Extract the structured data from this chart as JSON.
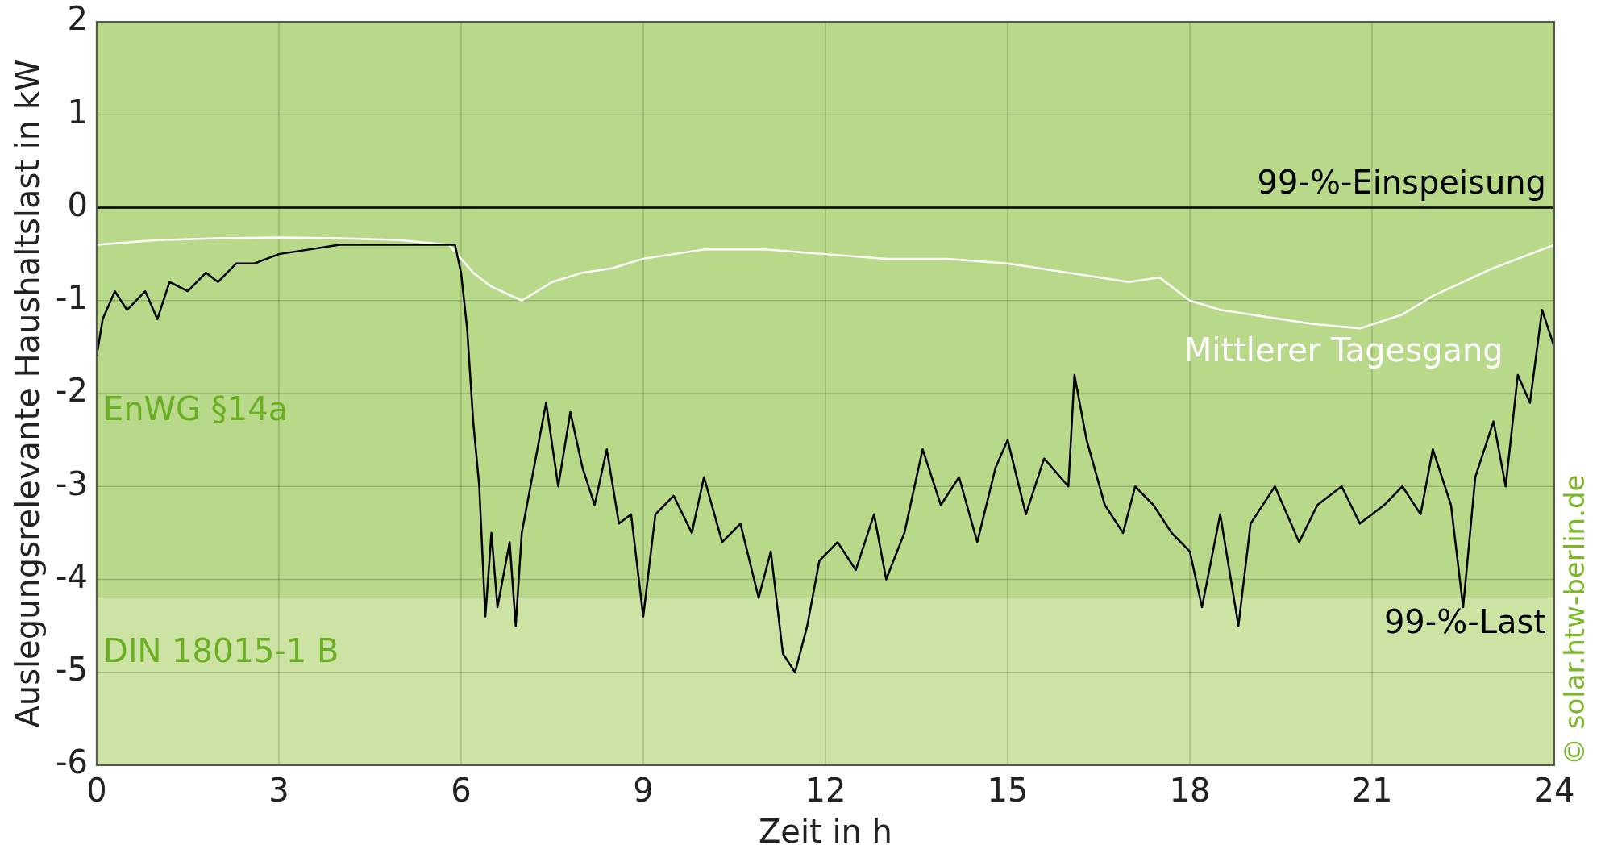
{
  "chart_data": {
    "type": "line",
    "xlabel": "Zeit in h",
    "ylabel": "Auslegungsrelevante Haushaltslast in kW",
    "xlim": [
      0,
      24
    ],
    "xticks": [
      0,
      3,
      6,
      9,
      12,
      15,
      18,
      21,
      24
    ],
    "ylim": [
      -6,
      2
    ],
    "yticks": [
      -6,
      -5,
      -4,
      -3,
      -2,
      -1,
      0,
      1,
      2
    ],
    "grid": true,
    "legend": false,
    "line_style": "solid",
    "marker": "none",
    "series": [
      {
        "name": "99-%-Last",
        "color": "#000000",
        "x": [
          0,
          0.1,
          0.3,
          0.5,
          0.8,
          1,
          1.2,
          1.5,
          1.8,
          2,
          2.3,
          2.6,
          3,
          3.5,
          4,
          4.5,
          5,
          5.5,
          5.9,
          6,
          6.1,
          6.2,
          6.3,
          6.4,
          6.5,
          6.6,
          6.8,
          6.9,
          7,
          7.2,
          7.4,
          7.6,
          7.8,
          8,
          8.2,
          8.4,
          8.6,
          8.8,
          9,
          9.2,
          9.5,
          9.8,
          10,
          10.3,
          10.6,
          10.9,
          11.1,
          11.3,
          11.5,
          11.7,
          11.9,
          12.2,
          12.5,
          12.8,
          13,
          13.3,
          13.6,
          13.9,
          14.2,
          14.5,
          14.8,
          15,
          15.3,
          15.6,
          16,
          16.1,
          16.3,
          16.6,
          16.9,
          17.1,
          17.4,
          17.7,
          18,
          18.2,
          18.5,
          18.8,
          19,
          19.4,
          19.8,
          20.1,
          20.5,
          20.8,
          21.2,
          21.5,
          21.8,
          22,
          22.3,
          22.5,
          22.7,
          23,
          23.2,
          23.4,
          23.6,
          23.8,
          24
        ],
        "values": [
          -1.6,
          -1.2,
          -0.9,
          -1.1,
          -0.9,
          -1.2,
          -0.8,
          -0.9,
          -0.7,
          -0.8,
          -0.6,
          -0.6,
          -0.5,
          -0.45,
          -0.4,
          -0.4,
          -0.4,
          -0.4,
          -0.4,
          -0.7,
          -1.3,
          -2.3,
          -3.0,
          -4.4,
          -3.5,
          -4.3,
          -3.6,
          -4.5,
          -3.5,
          -2.8,
          -2.1,
          -3.0,
          -2.2,
          -2.8,
          -3.2,
          -2.6,
          -3.4,
          -3.3,
          -4.4,
          -3.3,
          -3.1,
          -3.5,
          -2.9,
          -3.6,
          -3.4,
          -4.2,
          -3.7,
          -4.8,
          -5.0,
          -4.5,
          -3.8,
          -3.6,
          -3.9,
          -3.3,
          -4.0,
          -3.5,
          -2.6,
          -3.2,
          -2.9,
          -3.6,
          -2.8,
          -2.5,
          -3.3,
          -2.7,
          -3.0,
          -1.8,
          -2.5,
          -3.2,
          -3.5,
          -3.0,
          -3.2,
          -3.5,
          -3.7,
          -4.3,
          -3.3,
          -4.5,
          -3.4,
          -3.0,
          -3.6,
          -3.2,
          -3.0,
          -3.4,
          -3.2,
          -3.0,
          -3.3,
          -2.6,
          -3.2,
          -4.3,
          -2.9,
          -2.3,
          -3.0,
          -1.8,
          -2.1,
          -1.1,
          -1.5
        ]
      },
      {
        "name": "Mittlerer Tagesgang",
        "color": "#ffffff",
        "x": [
          0,
          1,
          2,
          3,
          4,
          5,
          5.8,
          6.2,
          6.5,
          7,
          7.5,
          8,
          8.5,
          9,
          10,
          11,
          12,
          13,
          14,
          15,
          16,
          17,
          17.5,
          18,
          18.5,
          19,
          20,
          20.8,
          21.5,
          22,
          23,
          24
        ],
        "values": [
          -0.4,
          -0.35,
          -0.33,
          -0.32,
          -0.33,
          -0.35,
          -0.4,
          -0.7,
          -0.85,
          -1.0,
          -0.8,
          -0.7,
          -0.65,
          -0.55,
          -0.45,
          -0.45,
          -0.5,
          -0.55,
          -0.55,
          -0.6,
          -0.7,
          -0.8,
          -0.75,
          -1.0,
          -1.1,
          -1.15,
          -1.25,
          -1.3,
          -1.15,
          -0.95,
          -0.65,
          -0.4
        ]
      }
    ],
    "ref_lines": [
      {
        "axis": "y",
        "value": 0,
        "label": "99-%-Einspeisung",
        "color": "#000000"
      }
    ],
    "bands": [
      {
        "axis": "y",
        "from": -4.2,
        "to": 2,
        "label": "EnWG §14a",
        "color": "#b8d98a"
      },
      {
        "axis": "y",
        "from": -6,
        "to": -4.2,
        "label": "DIN 18015-1 B",
        "color": "#cde3a4"
      }
    ],
    "annotations": [
      "© solar.htw-berlin.de"
    ]
  }
}
